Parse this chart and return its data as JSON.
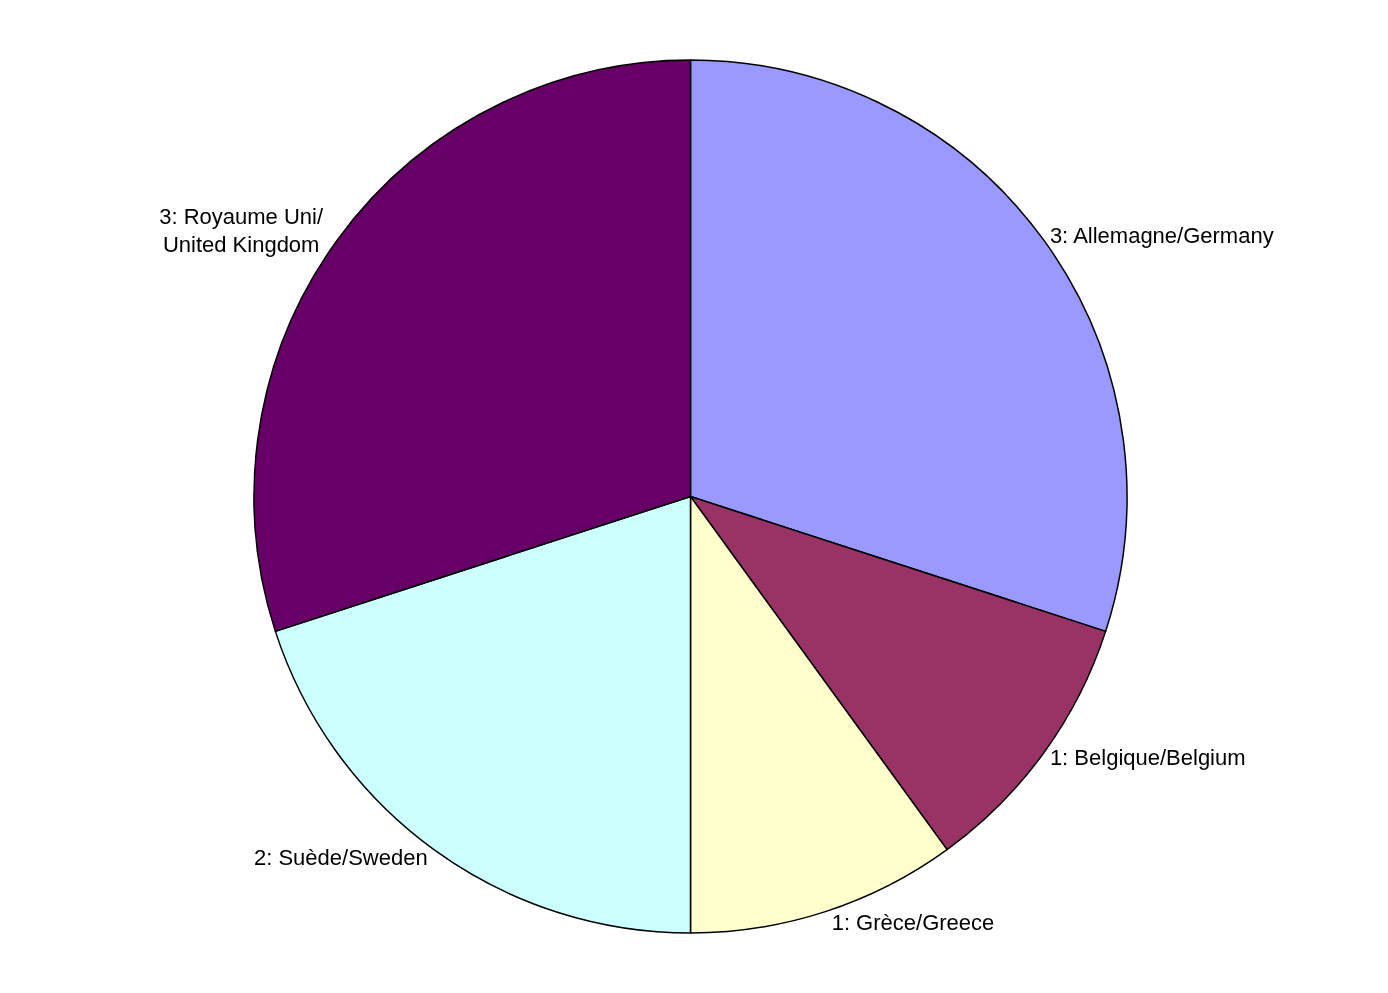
{
  "chart_data": {
    "type": "pie",
    "categories": [
      "Allemagne/Germany",
      "Belgique/Belgium",
      "Grèce/Greece",
      "Suède/Sweden",
      "Royaume Uni/United Kingdom"
    ],
    "values": [
      3,
      1,
      1,
      2,
      3
    ],
    "colors": [
      "#9999ff",
      "#993366",
      "#ffffcc",
      "#ccffff",
      "#660066"
    ],
    "value_labels": [
      "3:",
      "1:",
      "1:",
      "2:",
      "3:"
    ],
    "legend": false
  }
}
